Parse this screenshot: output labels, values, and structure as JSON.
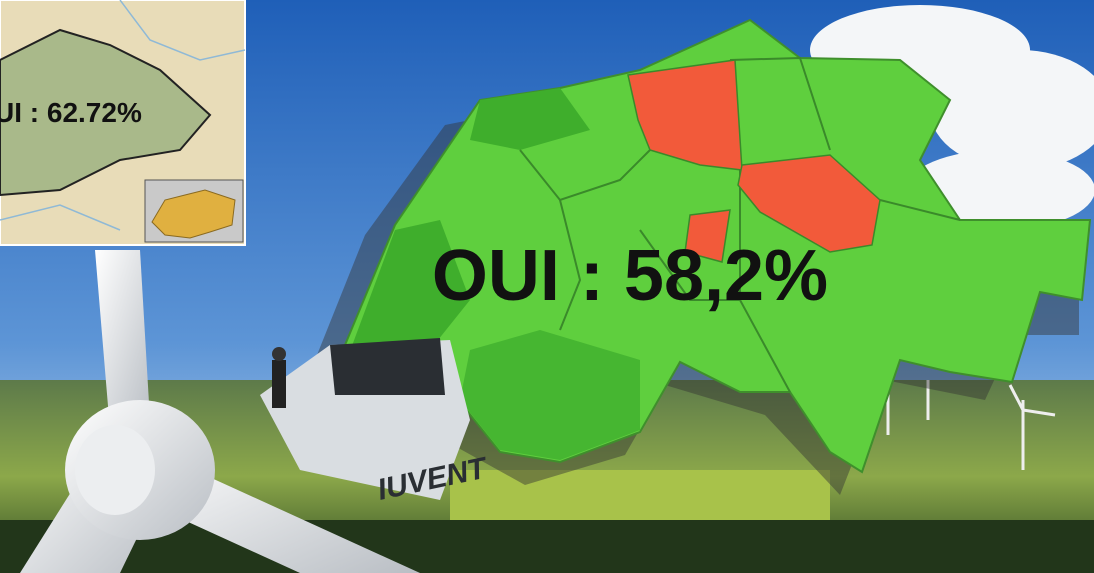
{
  "main_map": {
    "label": "OUI : 58,2%"
  },
  "inset_map": {
    "label": "UI : 62.72%"
  },
  "photo": {
    "turbine_text": "IUVENT"
  }
}
